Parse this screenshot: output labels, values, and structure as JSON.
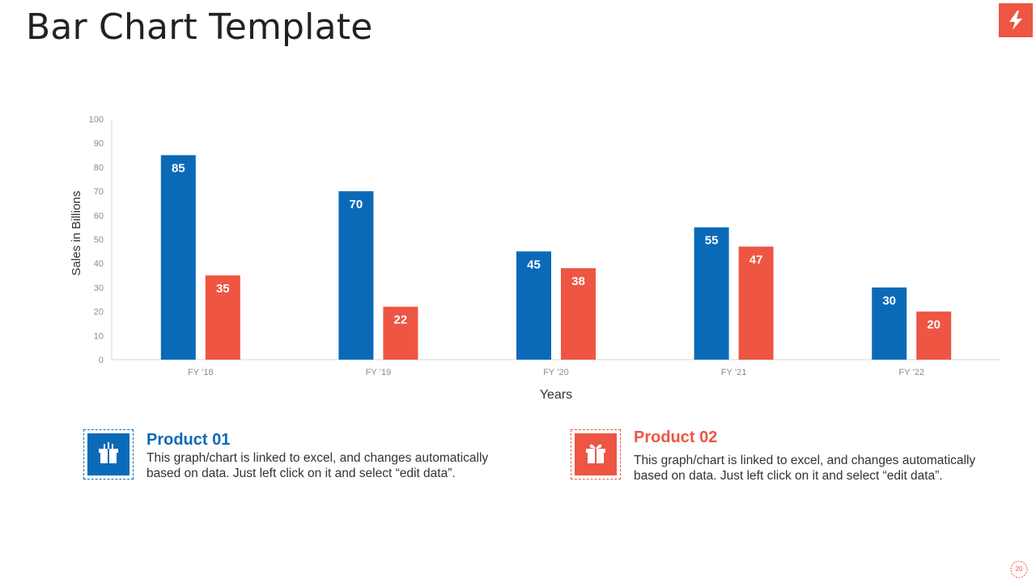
{
  "page": {
    "title": "Bar Chart Template",
    "page_number": "20",
    "logo_icon": "lightning-bolt-icon"
  },
  "colors": {
    "series1": "#0a6ab8",
    "series2": "#ee5543"
  },
  "chart_data": {
    "type": "bar",
    "title": "",
    "xlabel": "Years",
    "ylabel": "Sales in Billions",
    "ylim": [
      0,
      100
    ],
    "yticks": [
      0,
      10,
      20,
      30,
      40,
      50,
      60,
      70,
      80,
      90,
      100
    ],
    "categories": [
      "FY ’18",
      "FY ’19",
      "FY ’20",
      "FY ’21",
      "FY ’22"
    ],
    "series": [
      {
        "name": "Product 01",
        "values": [
          85,
          70,
          45,
          55,
          30
        ]
      },
      {
        "name": "Product 02",
        "values": [
          35,
          22,
          38,
          47,
          20
        ]
      }
    ],
    "grid": false
  },
  "legend": [
    {
      "name": "Product 01",
      "description": "This graph/chart is linked to excel, and changes automatically based on data. Just left click on it and select “edit data”.",
      "icon": "gift-box-icon"
    },
    {
      "name": "Product 02",
      "description": "This graph/chart is linked to excel, and changes automatically based on data. Just left click on it and select “edit data”.",
      "icon": "gift-box-icon"
    }
  ]
}
